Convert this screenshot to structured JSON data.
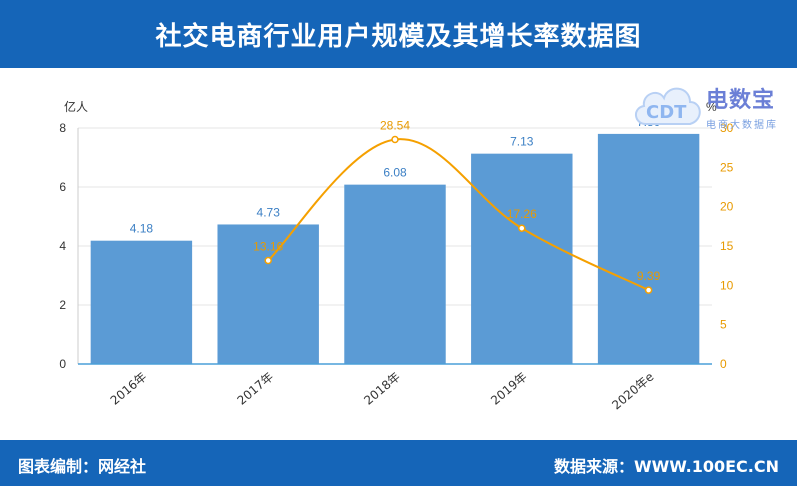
{
  "header": {
    "title": "社交电商行业用户规模及其增长率数据图"
  },
  "footer": {
    "left": "图表编制：网经社",
    "right": "数据来源：WWW.100EC.CN"
  },
  "logo": {
    "title": "电数宝",
    "subtitle": "电商大数据库",
    "mark": "CDT",
    "icon": "cloud-icon"
  },
  "colors": {
    "header_bg": "#1565b8",
    "bar": "#5b9bd5",
    "line": "#f5a000",
    "bar_label": "#3b7fc4"
  },
  "chart_data": {
    "type": "bar+line",
    "categories": [
      "2016年",
      "2017年",
      "2018年",
      "2019年",
      "2020年e"
    ],
    "series": [
      {
        "type": "bar",
        "axis": "left",
        "values": [
          4.18,
          4.73,
          6.08,
          7.13,
          7.8
        ],
        "labels": [
          "4.18",
          "4.73",
          "6.08",
          "7.13",
          "7.80"
        ]
      },
      {
        "type": "line",
        "axis": "right",
        "values": [
          null,
          13.16,
          28.54,
          17.26,
          9.39
        ],
        "labels": [
          "",
          "13.16",
          "28.54",
          "17.26",
          "9.39"
        ]
      }
    ],
    "left_axis": {
      "unit": "亿人",
      "ylim": [
        0,
        8
      ],
      "ticks": [
        "0",
        "2",
        "4",
        "6",
        "8"
      ]
    },
    "right_axis": {
      "unit": "%",
      "ylim": [
        0,
        30
      ],
      "ticks": [
        "0",
        "5",
        "10",
        "15",
        "20",
        "25",
        "30"
      ]
    },
    "grid": true
  }
}
